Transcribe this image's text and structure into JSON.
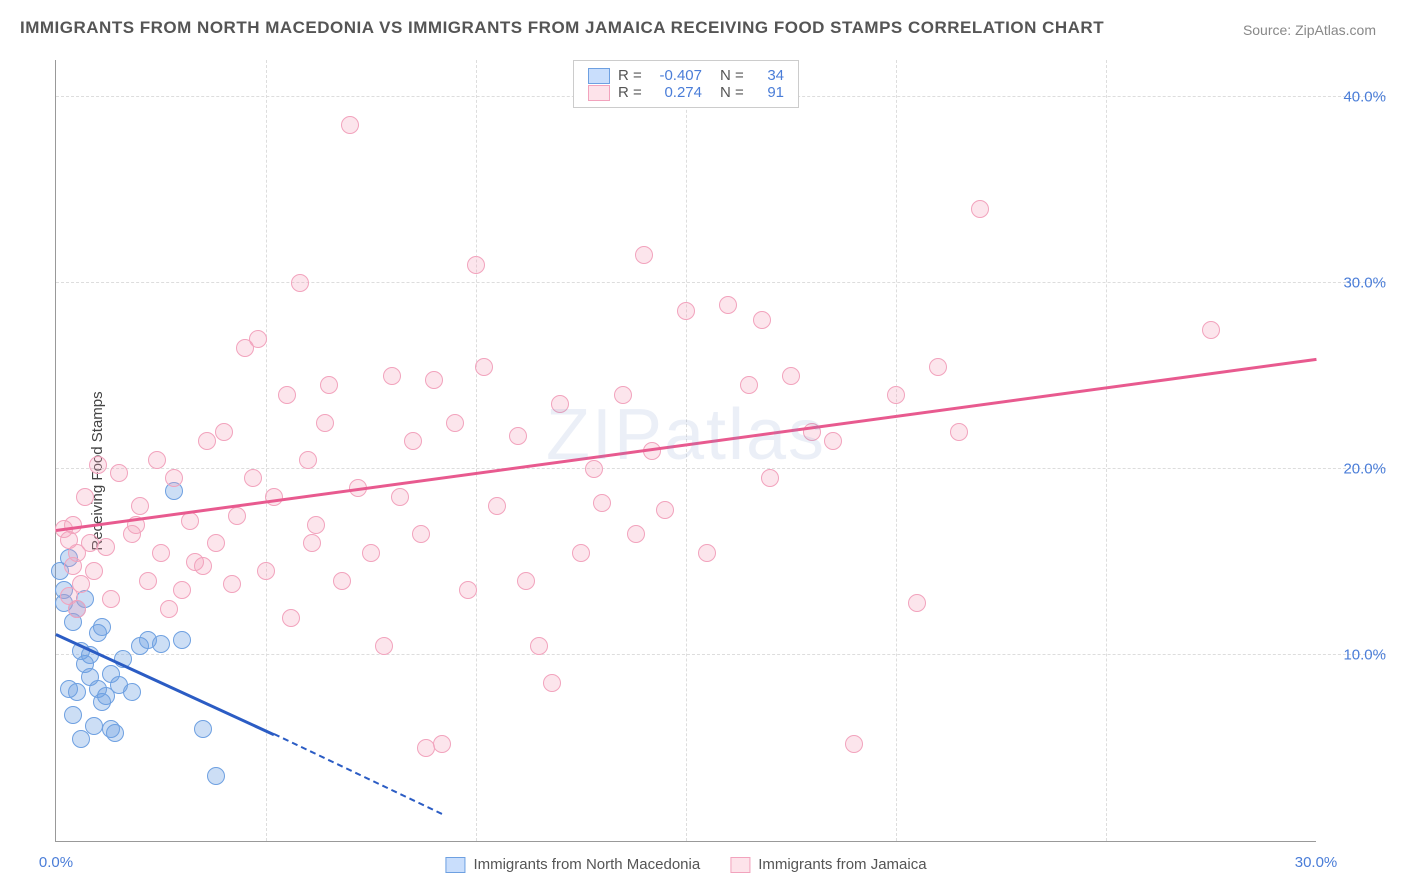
{
  "title": "IMMIGRANTS FROM NORTH MACEDONIA VS IMMIGRANTS FROM JAMAICA RECEIVING FOOD STAMPS CORRELATION CHART",
  "source_label": "Source:",
  "source_name": "ZipAtlas.com",
  "watermark": "ZIPatlas",
  "yaxis_label": "Receiving Food Stamps",
  "chart": {
    "type": "scatter",
    "xlim": [
      0,
      30
    ],
    "ylim": [
      0,
      42
    ],
    "xtick_labels": [
      "0.0%",
      "30.0%"
    ],
    "xtick_positions": [
      0,
      30
    ],
    "ytick_labels": [
      "10.0%",
      "20.0%",
      "30.0%",
      "40.0%"
    ],
    "ytick_positions": [
      10,
      20,
      30,
      40
    ],
    "minor_vgrid": [
      5,
      10,
      15,
      20,
      25
    ],
    "background_color": "#ffffff",
    "grid_color": "#dddddd",
    "series": [
      {
        "name": "Immigrants from North Macedonia",
        "color_fill": "rgba(110,160,225,0.35)",
        "color_stroke": "#6ea0e1",
        "swatch_fill": "#c9defc",
        "swatch_border": "#6ea0e1",
        "R": "-0.407",
        "N": "34",
        "trend_color": "#2b5cc4",
        "trend": {
          "x1": 0,
          "y1": 11.2,
          "x2": 5.2,
          "y2": 5.8
        },
        "trend_dashed": {
          "x1": 5.2,
          "y1": 5.8,
          "x2": 9.2,
          "y2": 1.5
        },
        "points": [
          [
            0.1,
            14.5
          ],
          [
            0.2,
            12.8
          ],
          [
            0.2,
            13.5
          ],
          [
            0.4,
            11.8
          ],
          [
            0.3,
            8.2
          ],
          [
            0.6,
            10.2
          ],
          [
            0.7,
            9.5
          ],
          [
            0.8,
            10.0
          ],
          [
            0.5,
            12.5
          ],
          [
            0.8,
            8.8
          ],
          [
            1.0,
            8.2
          ],
          [
            1.1,
            7.5
          ],
          [
            1.3,
            9.0
          ],
          [
            1.5,
            8.4
          ],
          [
            0.4,
            6.8
          ],
          [
            0.6,
            5.5
          ],
          [
            1.0,
            11.2
          ],
          [
            1.2,
            7.8
          ],
          [
            1.6,
            9.8
          ],
          [
            2.0,
            10.5
          ],
          [
            2.2,
            10.8
          ],
          [
            2.5,
            10.6
          ],
          [
            0.9,
            6.2
          ],
          [
            1.4,
            5.8
          ],
          [
            0.3,
            15.2
          ],
          [
            2.8,
            18.8
          ],
          [
            3.0,
            10.8
          ],
          [
            0.7,
            13.0
          ],
          [
            1.8,
            8.0
          ],
          [
            3.5,
            6.0
          ],
          [
            0.5,
            8.0
          ],
          [
            1.1,
            11.5
          ],
          [
            3.8,
            3.5
          ],
          [
            1.3,
            6.0
          ]
        ]
      },
      {
        "name": "Immigrants from Jamaica",
        "color_fill": "rgba(245,160,185,0.28)",
        "color_stroke": "#f2a3bd",
        "swatch_fill": "#fde3ea",
        "swatch_border": "#f2a3bd",
        "R": "0.274",
        "N": "91",
        "trend_color": "#e85a8f",
        "trend": {
          "x1": 0,
          "y1": 16.8,
          "x2": 30,
          "y2": 26.0
        },
        "points": [
          [
            0.2,
            16.8
          ],
          [
            0.3,
            16.2
          ],
          [
            0.5,
            15.5
          ],
          [
            0.4,
            17.0
          ],
          [
            0.8,
            16.0
          ],
          [
            0.3,
            13.2
          ],
          [
            0.6,
            13.8
          ],
          [
            0.9,
            14.5
          ],
          [
            0.5,
            12.5
          ],
          [
            1.2,
            15.8
          ],
          [
            1.5,
            19.8
          ],
          [
            1.8,
            16.5
          ],
          [
            2.0,
            18.0
          ],
          [
            1.0,
            20.2
          ],
          [
            2.2,
            14.0
          ],
          [
            2.5,
            15.5
          ],
          [
            2.8,
            19.5
          ],
          [
            3.0,
            13.5
          ],
          [
            3.2,
            17.2
          ],
          [
            3.5,
            14.8
          ],
          [
            2.4,
            20.5
          ],
          [
            3.8,
            16.0
          ],
          [
            4.0,
            22.0
          ],
          [
            4.2,
            13.8
          ],
          [
            4.5,
            26.5
          ],
          [
            5.0,
            14.5
          ],
          [
            5.2,
            18.5
          ],
          [
            4.8,
            27.0
          ],
          [
            5.5,
            24.0
          ],
          [
            5.8,
            30.0
          ],
          [
            6.0,
            20.5
          ],
          [
            6.2,
            17.0
          ],
          [
            6.5,
            24.5
          ],
          [
            7.0,
            38.5
          ],
          [
            6.8,
            14.0
          ],
          [
            7.5,
            15.5
          ],
          [
            8.0,
            25.0
          ],
          [
            8.2,
            18.5
          ],
          [
            8.5,
            21.5
          ],
          [
            9.0,
            24.8
          ],
          [
            7.8,
            10.5
          ],
          [
            9.5,
            22.5
          ],
          [
            10.0,
            31.0
          ],
          [
            10.2,
            25.5
          ],
          [
            10.5,
            18.0
          ],
          [
            11.0,
            21.8
          ],
          [
            8.8,
            5.0
          ],
          [
            9.2,
            5.2
          ],
          [
            11.2,
            14.0
          ],
          [
            11.5,
            10.5
          ],
          [
            12.0,
            23.5
          ],
          [
            12.5,
            15.5
          ],
          [
            13.0,
            18.2
          ],
          [
            13.5,
            24.0
          ],
          [
            14.0,
            31.5
          ],
          [
            14.5,
            17.8
          ],
          [
            11.8,
            8.5
          ],
          [
            15.0,
            28.5
          ],
          [
            15.5,
            15.5
          ],
          [
            16.0,
            28.8
          ],
          [
            16.5,
            24.5
          ],
          [
            14.2,
            21.0
          ],
          [
            17.0,
            19.5
          ],
          [
            17.5,
            25.0
          ],
          [
            16.8,
            28.0
          ],
          [
            18.0,
            22.0
          ],
          [
            18.5,
            21.5
          ],
          [
            20.0,
            24.0
          ],
          [
            21.0,
            25.5
          ],
          [
            20.5,
            12.8
          ],
          [
            22.0,
            34.0
          ],
          [
            21.5,
            22.0
          ],
          [
            19.0,
            5.2
          ],
          [
            27.5,
            27.5
          ],
          [
            4.3,
            17.5
          ],
          [
            5.6,
            12.0
          ],
          [
            6.4,
            22.5
          ],
          [
            7.2,
            19.0
          ],
          [
            8.7,
            16.5
          ],
          [
            9.8,
            13.5
          ],
          [
            3.6,
            21.5
          ],
          [
            2.7,
            12.5
          ],
          [
            1.3,
            13.0
          ],
          [
            0.7,
            18.5
          ],
          [
            13.8,
            16.5
          ],
          [
            12.8,
            20.0
          ],
          [
            1.9,
            17.0
          ],
          [
            3.3,
            15.0
          ],
          [
            4.7,
            19.5
          ],
          [
            6.1,
            16.0
          ],
          [
            0.4,
            14.8
          ]
        ]
      }
    ]
  },
  "legend_labels": {
    "R": "R =",
    "N": "N ="
  }
}
